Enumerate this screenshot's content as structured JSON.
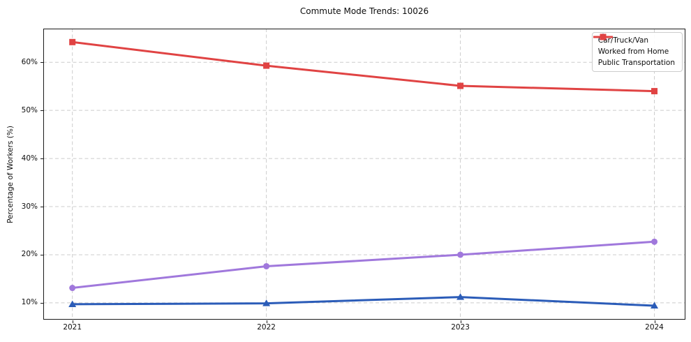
{
  "chart_data": {
    "type": "line",
    "title": "Commute Mode Trends: 10026",
    "xlabel": "",
    "ylabel": "Percentage of Workers (%)",
    "x": [
      2021,
      2022,
      2023,
      2024
    ],
    "x_tick_labels": [
      "2021",
      "2022",
      "2023",
      "2024"
    ],
    "y_ticks": [
      10,
      20,
      30,
      40,
      50,
      60
    ],
    "y_tick_labels": [
      "10%",
      "20%",
      "30%",
      "40%",
      "50%",
      "60%"
    ],
    "xlim": [
      2020.85,
      2024.16
    ],
    "ylim": [
      6.5,
      67
    ],
    "grid": true,
    "grid_style": "dashed",
    "legend_position": "upper right",
    "series": [
      {
        "name": "Car/Truck/Van",
        "marker": "triangle",
        "color": "#2b5cb8",
        "values": [
          9.7,
          9.9,
          11.2,
          9.4
        ]
      },
      {
        "name": "Worked from Home",
        "marker": "circle",
        "color": "#a078dc",
        "values": [
          13.1,
          17.6,
          20.0,
          22.7
        ]
      },
      {
        "name": "Public Transportation",
        "marker": "square",
        "color": "#e04343",
        "values": [
          64.2,
          59.3,
          55.1,
          54.0
        ]
      }
    ]
  },
  "colors": {
    "background": "#ffffff",
    "grid": "#cccccc",
    "spine": "#1a1a1a",
    "text": "#0d0d0d",
    "legend_border": "#cccccc"
  }
}
